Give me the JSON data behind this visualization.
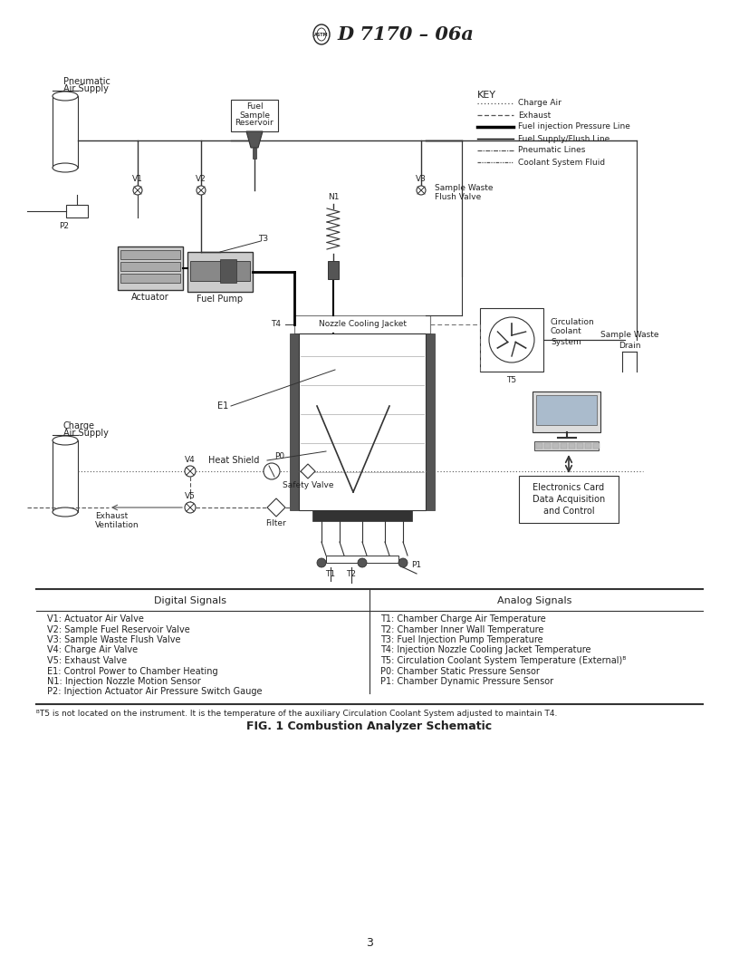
{
  "page_width": 8.16,
  "page_height": 10.56,
  "bg_color": "#ffffff",
  "header_title": "D 7170 – 06a",
  "page_number": "3",
  "fig_caption": "FIG. 1 Combustion Analyzer Schematic",
  "footnote": "ᴮT5 is not located on the instrument. It is the temperature of the auxiliary Circulation Coolant System adjusted to maintain T4.",
  "table_header_left": "Digital Signals",
  "table_header_right": "Analog Signals",
  "digital_signals": [
    "V1: Actuator Air Valve",
    "V2: Sample Fuel Reservoir Valve",
    "V3: Sample Waste Flush Valve",
    "V4: Charge Air Valve",
    "V5: Exhaust Valve",
    "E1: Control Power to Chamber Heating",
    "N1: Injection Nozzle Motion Sensor",
    "P2: Injection Actuator Air Pressure Switch Gauge"
  ],
  "analog_signals": [
    "T1: Chamber Charge Air Temperature",
    "T2: Chamber Inner Wall Temperature",
    "T3: Fuel Injection Pump Temperature",
    "T4: Injection Nozzle Cooling Jacket Temperature",
    "T5: Circulation Coolant System Temperature (External)ᴮ",
    "P0: Chamber Static Pressure Sensor",
    "P1: Chamber Dynamic Pressure Sensor"
  ],
  "key_items": [
    {
      "label": "Charge Air",
      "style": "dotted"
    },
    {
      "label": "Exhaust",
      "style": "dashed"
    },
    {
      "label": "Fuel injection Pressure Line",
      "style": "solid_thick"
    },
    {
      "label": "Fuel Supply/Flush Line",
      "style": "solid_thin"
    },
    {
      "label": "Pneumatic Lines",
      "style": "dashdot"
    },
    {
      "label": "Coolant System Fluid",
      "style": "dashdotdot"
    }
  ]
}
